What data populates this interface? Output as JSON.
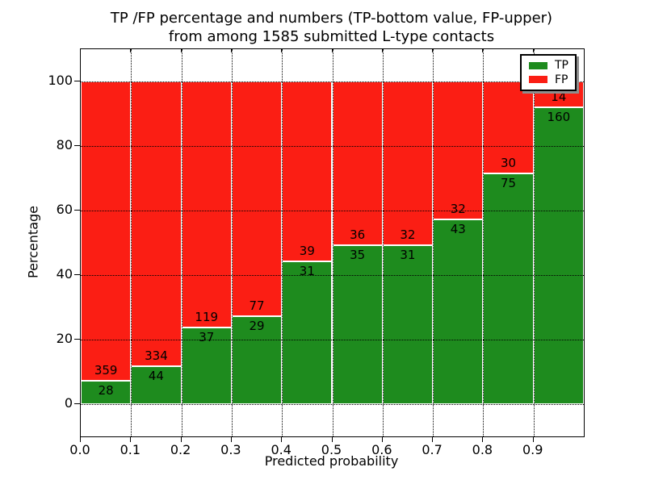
{
  "chart_data": {
    "type": "bar",
    "stacked": true,
    "unit": "percent",
    "title_lines": [
      "TP /FP percentage and numbers (TP-bottom value, FP-upper)",
      "from among 1585 submitted L-type contacts"
    ],
    "xlabel": "Predicted probability",
    "ylabel": "Percentage",
    "xlim": [
      0.0,
      1.0
    ],
    "ylim": [
      -10,
      110
    ],
    "bin_width": 0.1,
    "bin_starts": [
      0.0,
      0.1,
      0.2,
      0.3,
      0.4,
      0.5,
      0.6,
      0.7,
      0.8,
      0.9
    ],
    "xtick_values": [
      0.0,
      0.1,
      0.2,
      0.3,
      0.4,
      0.5,
      0.6,
      0.7,
      0.8,
      0.9
    ],
    "xtick_labels": [
      "0.0",
      "0.1",
      "0.2",
      "0.3",
      "0.4",
      "0.5",
      "0.6",
      "0.7",
      "0.8",
      "0.9"
    ],
    "ytick_values": [
      0,
      20,
      40,
      60,
      80,
      100
    ],
    "ytick_labels": [
      "0",
      "20",
      "40",
      "60",
      "80",
      "100"
    ],
    "grid": {
      "visible": true,
      "style": "dotted",
      "color": "#000000"
    },
    "series": [
      {
        "name": "TP",
        "color": "#1e8b1e",
        "values": [
          28,
          44,
          37,
          29,
          31,
          35,
          31,
          43,
          75,
          160
        ]
      },
      {
        "name": "FP",
        "color": "#fb1e14",
        "values": [
          359,
          334,
          119,
          77,
          39,
          36,
          32,
          32,
          30,
          14
        ]
      }
    ],
    "legend": {
      "position": "upper right",
      "entries": [
        "TP",
        "FP"
      ]
    }
  }
}
